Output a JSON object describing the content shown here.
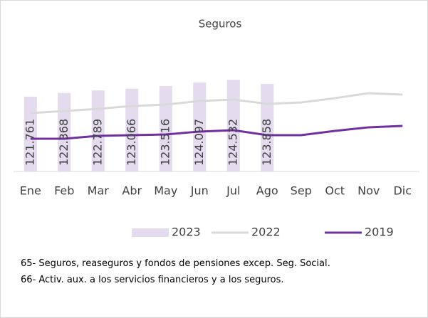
{
  "chart_data": {
    "type": "bar",
    "title": "Seguros",
    "categories": [
      "Ene",
      "Feb",
      "Mar",
      "Abr",
      "May",
      "Jun",
      "Jul",
      "Ago",
      "Sep",
      "Oct",
      "Nov",
      "Dic"
    ],
    "ylim": [
      109500,
      130500
    ],
    "series": [
      {
        "name": "2023",
        "type": "bar",
        "color": "#e4dcee",
        "values": [
          121761,
          122368,
          122789,
          123066,
          123516,
          124097,
          124532,
          123858,
          null,
          null,
          null,
          null
        ],
        "value_labels": [
          "121.761",
          "122.368",
          "122.789",
          "123.066",
          "123.516",
          "124.097",
          "124.532",
          "123.858",
          null,
          null,
          null,
          null
        ]
      },
      {
        "name": "2022",
        "type": "line",
        "color": "#d9d9d9",
        "values": [
          119070,
          119420,
          119770,
          120240,
          120470,
          121050,
          121290,
          120590,
          120820,
          121520,
          122340,
          122100
        ]
      },
      {
        "name": "2019",
        "type": "line",
        "color": "#7030a0",
        "values": [
          114870,
          114870,
          115340,
          115450,
          115570,
          116040,
          116270,
          115450,
          115450,
          116150,
          116740,
          116970
        ]
      }
    ],
    "notes": [
      "65- Seguros, reaseguros y fondos de pensiones excep. Seg. Social.",
      "66- Activ. aux. a los servicios financieros y a los seguros."
    ]
  }
}
